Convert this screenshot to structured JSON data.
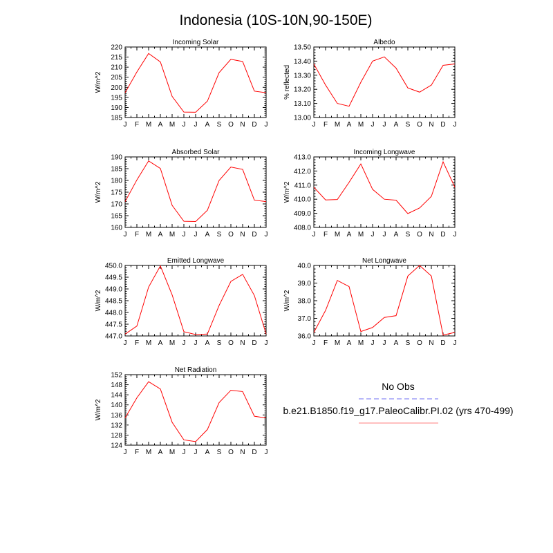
{
  "title": "Indonesia (10S-10N,90-150E)",
  "legend": {
    "obs_label": "No Obs",
    "obs_color": "#8c8cf5",
    "model_label": "b.e21.B1850.f19_g17.PaleoCalibr.PI.02 (yrs 470-499)",
    "model_color": "#ff0000"
  },
  "chart_data": [
    {
      "type": "line",
      "title": "Incoming Solar",
      "ylabel": "W/m^2",
      "categories": [
        "J",
        "F",
        "M",
        "A",
        "M",
        "J",
        "J",
        "A",
        "S",
        "O",
        "N",
        "D",
        "J"
      ],
      "values": [
        197.3,
        207.6,
        216.8,
        212.6,
        195.5,
        187.7,
        187.6,
        193.1,
        207.3,
        213.9,
        212.8,
        198.1,
        197.3
      ],
      "ylim": [
        185,
        220
      ],
      "yticks": [
        185,
        190,
        195,
        200,
        205,
        210,
        215,
        220
      ],
      "ytick_labels": [
        "185",
        "190",
        "195",
        "200",
        "205",
        "210",
        "215",
        "220"
      ],
      "color": "#ff0000"
    },
    {
      "type": "line",
      "title": "Albedo",
      "ylabel": "% reflected",
      "categories": [
        "J",
        "F",
        "M",
        "A",
        "M",
        "J",
        "J",
        "A",
        "S",
        "O",
        "N",
        "D",
        "J"
      ],
      "values": [
        13.38,
        13.23,
        13.1,
        13.08,
        13.25,
        13.4,
        13.43,
        13.35,
        13.21,
        13.18,
        13.23,
        13.37,
        13.38
      ],
      "ylim": [
        13.0,
        13.5
      ],
      "yticks": [
        13.0,
        13.1,
        13.2,
        13.3,
        13.4,
        13.5
      ],
      "ytick_labels": [
        "13.00",
        "13.10",
        "13.20",
        "13.30",
        "13.40",
        "13.50"
      ],
      "color": "#ff0000"
    },
    {
      "type": "line",
      "title": "Absorbed Solar",
      "ylabel": "W/m^2",
      "categories": [
        "J",
        "F",
        "M",
        "A",
        "M",
        "J",
        "J",
        "A",
        "S",
        "O",
        "N",
        "D",
        "J"
      ],
      "values": [
        171.0,
        180.2,
        188.3,
        185.1,
        169.4,
        162.6,
        162.5,
        167.3,
        180.0,
        185.7,
        184.7,
        171.6,
        171.0
      ],
      "ylim": [
        160,
        190
      ],
      "yticks": [
        160,
        165,
        170,
        175,
        180,
        185,
        190
      ],
      "ytick_labels": [
        "160",
        "165",
        "170",
        "175",
        "180",
        "185",
        "190"
      ],
      "color": "#ff0000"
    },
    {
      "type": "line",
      "title": "Incoming Longwave",
      "ylabel": "W/m^2",
      "categories": [
        "J",
        "F",
        "M",
        "A",
        "M",
        "J",
        "J",
        "A",
        "S",
        "O",
        "N",
        "D",
        "J"
      ],
      "values": [
        410.85,
        409.95,
        409.98,
        411.2,
        412.5,
        410.7,
        410.0,
        409.93,
        408.98,
        409.38,
        410.2,
        412.65,
        410.85
      ],
      "ylim": [
        408.0,
        413.0
      ],
      "yticks": [
        408,
        409,
        410,
        411,
        412,
        413
      ],
      "ytick_labels": [
        "408.0",
        "409.0",
        "410.0",
        "411.0",
        "412.0",
        "413.0"
      ],
      "color": "#ff0000"
    },
    {
      "type": "line",
      "title": "Emitted Longwave",
      "ylabel": "W/m^2",
      "categories": [
        "J",
        "F",
        "M",
        "A",
        "M",
        "J",
        "J",
        "A",
        "S",
        "O",
        "N",
        "D",
        "J"
      ],
      "values": [
        447.08,
        447.42,
        449.08,
        449.98,
        448.75,
        447.18,
        447.06,
        447.08,
        448.3,
        449.32,
        449.62,
        448.72,
        447.08
      ],
      "ylim": [
        447.0,
        450.0
      ],
      "yticks": [
        447.0,
        447.5,
        448.0,
        448.5,
        449.0,
        449.5,
        450.0
      ],
      "ytick_labels": [
        "447.0",
        "447.5",
        "448.0",
        "448.5",
        "449.0",
        "449.5",
        "450.0"
      ],
      "color": "#ff0000"
    },
    {
      "type": "line",
      "title": "Net Longwave",
      "ylabel": "W/m^2",
      "categories": [
        "J",
        "F",
        "M",
        "A",
        "M",
        "J",
        "J",
        "A",
        "S",
        "O",
        "N",
        "D",
        "J"
      ],
      "values": [
        36.2,
        37.45,
        39.15,
        38.8,
        36.25,
        36.48,
        37.05,
        37.15,
        39.4,
        40.0,
        39.4,
        36.05,
        36.2
      ],
      "ylim": [
        36.0,
        40.0
      ],
      "yticks": [
        36,
        37,
        38,
        39,
        40
      ],
      "ytick_labels": [
        "36.0",
        "37.0",
        "38.0",
        "39.0",
        "40.0"
      ],
      "color": "#ff0000"
    },
    {
      "type": "line",
      "title": "Net Radiation",
      "ylabel": "W/m^2",
      "categories": [
        "J",
        "F",
        "M",
        "A",
        "M",
        "J",
        "J",
        "A",
        "S",
        "O",
        "N",
        "D",
        "J"
      ],
      "values": [
        134.8,
        142.8,
        149.2,
        146.3,
        133.1,
        126.1,
        125.4,
        130.2,
        140.9,
        145.8,
        145.3,
        135.5,
        134.8
      ],
      "ylim": [
        124,
        152
      ],
      "yticks": [
        124,
        128,
        132,
        136,
        140,
        144,
        148,
        152
      ],
      "ytick_labels": [
        "124",
        "128",
        "132",
        "136",
        "140",
        "144",
        "148",
        "152"
      ],
      "color": "#ff0000"
    }
  ]
}
